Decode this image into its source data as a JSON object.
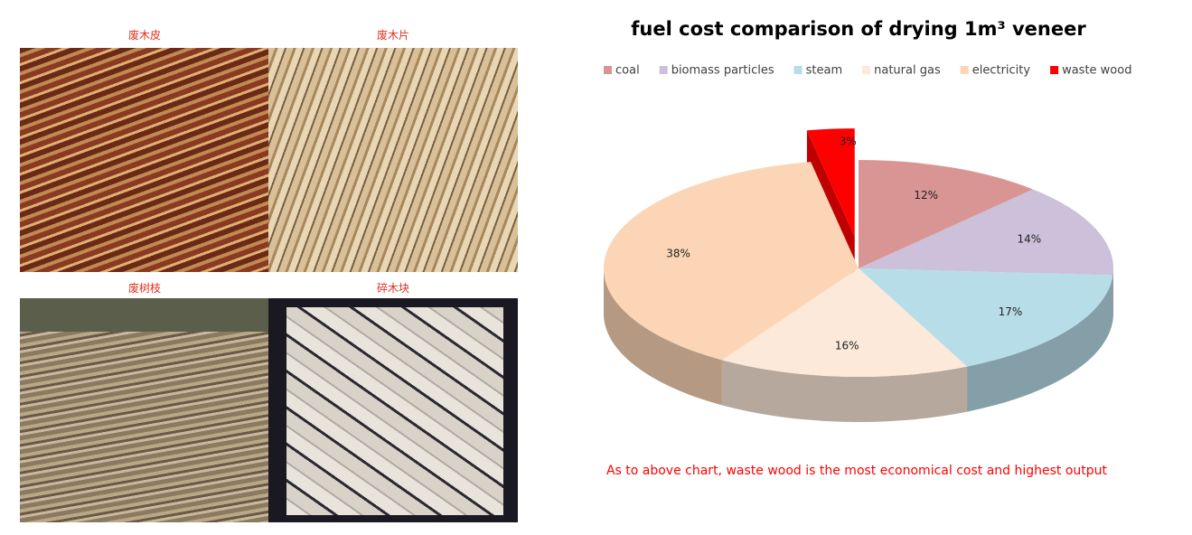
{
  "images": [
    {
      "label": "废木皮"
    },
    {
      "label": "废木片"
    },
    {
      "label": "废树枝"
    },
    {
      "label": "碎木块"
    }
  ],
  "chart_data": {
    "type": "pie3d",
    "title": "fuel cost comparison  of drying 1m³ veneer",
    "categories": [
      "coal",
      "biomass particles",
      "steam",
      "natural gas",
      "electricity",
      "waste wood"
    ],
    "values": [
      12,
      14,
      17,
      16,
      38,
      3
    ],
    "value_labels": [
      "12%",
      "14%",
      "17%",
      "16%",
      "38%",
      "3%"
    ],
    "colors": [
      "#d99594",
      "#ccc0da",
      "#b7dde8",
      "#fde9d9",
      "#fbd5b5",
      "#ff0000"
    ],
    "exploded": "waste wood",
    "annotation": "As to above chart, waste wood is the most economical cost and highest output"
  }
}
